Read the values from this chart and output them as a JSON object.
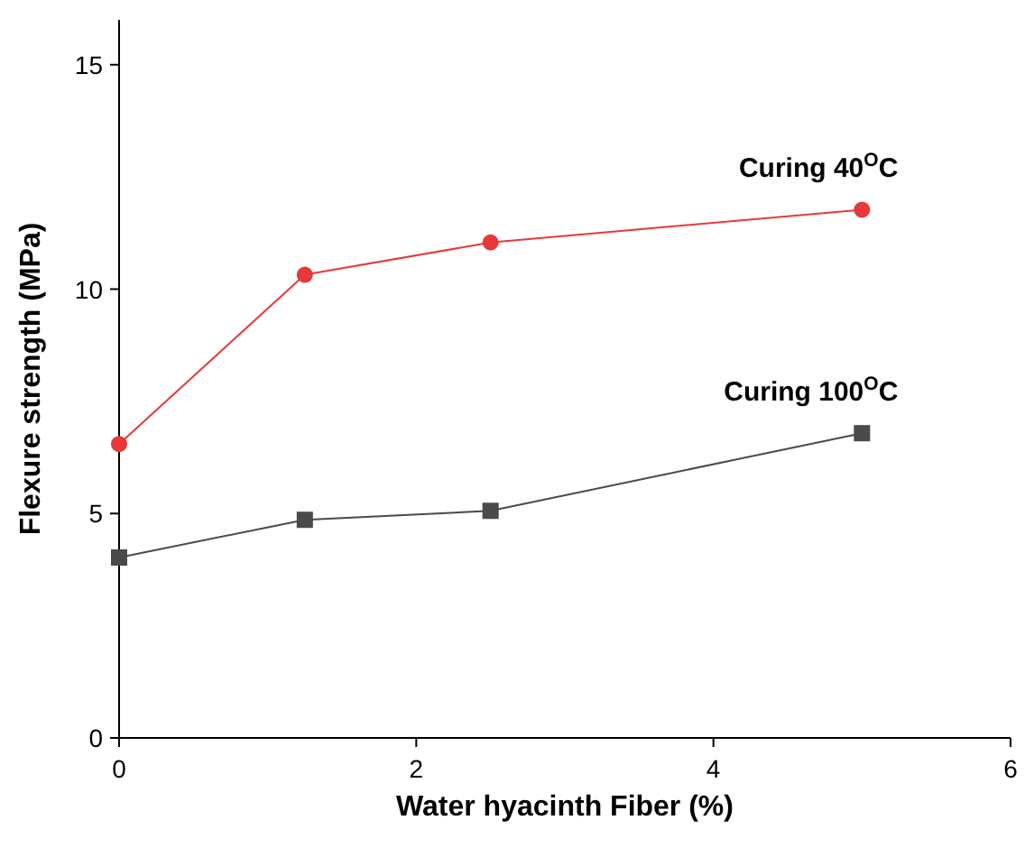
{
  "chart_data": {
    "type": "line",
    "xlabel": "Water hyacinth Fiber (%)",
    "ylabel": "Flexure strength (MPa)",
    "x": [
      0,
      1.25,
      2.5,
      5
    ],
    "xlim": [
      0,
      6
    ],
    "xticks": [
      0,
      2,
      4,
      6
    ],
    "ylim": [
      0,
      16
    ],
    "yticks": [
      0,
      5,
      10,
      15
    ],
    "grid": false,
    "line_style": "solid",
    "series": [
      {
        "name": "Curing 40$^{O}$C",
        "color": "#e8383a",
        "marker": "circle",
        "values": [
          6.55,
          10.32,
          11.04,
          11.77
        ]
      },
      {
        "name": "Curing 100$^{O}$C",
        "color": "#4a4a4a",
        "marker": "square",
        "values": [
          4.02,
          4.86,
          5.06,
          6.79
        ]
      }
    ]
  }
}
